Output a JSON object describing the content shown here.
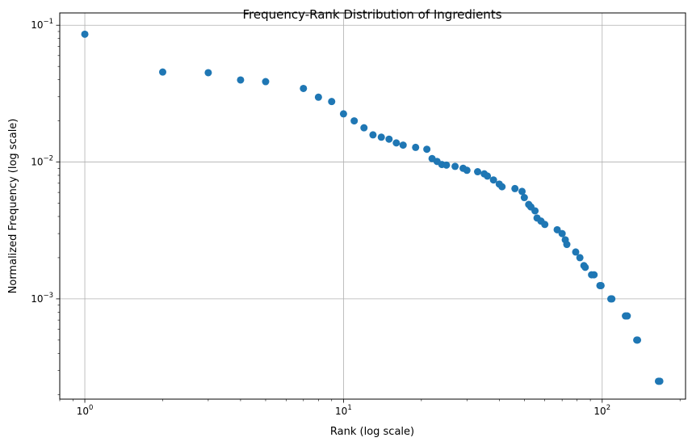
{
  "chart_data": {
    "type": "scatter",
    "title": "Frequency-Rank Distribution of Ingredients",
    "xlabel": "Rank (log scale)",
    "ylabel": "Normalized Frequency (log scale)",
    "xscale": "log",
    "yscale": "log",
    "xlim": [
      0.8,
      210
    ],
    "ylim": [
      0.000185,
      0.123
    ],
    "grid": true,
    "marker_color": "#1f77b4",
    "x_ticks": [
      {
        "value": 1,
        "base": "10",
        "exp": "0"
      },
      {
        "value": 10,
        "base": "10",
        "exp": "1"
      },
      {
        "value": 100,
        "base": "10",
        "exp": "2"
      }
    ],
    "y_ticks": [
      {
        "value": 0.001,
        "base": "10",
        "exp": "−3"
      },
      {
        "value": 0.01,
        "base": "10",
        "exp": "−2"
      },
      {
        "value": 0.1,
        "base": "10",
        "exp": "−1"
      }
    ],
    "points": [
      [
        1,
        0.086
      ],
      [
        2,
        0.0455
      ],
      [
        3,
        0.045
      ],
      [
        4,
        0.0398
      ],
      [
        5,
        0.0387
      ],
      [
        7,
        0.0345
      ],
      [
        8,
        0.0298
      ],
      [
        9,
        0.0277
      ],
      [
        10,
        0.0225
      ],
      [
        11,
        0.02
      ],
      [
        12,
        0.0178
      ],
      [
        13,
        0.0158
      ],
      [
        14,
        0.0152
      ],
      [
        15,
        0.0147
      ],
      [
        16,
        0.0138
      ],
      [
        17,
        0.0133
      ],
      [
        19,
        0.0128
      ],
      [
        21,
        0.0124
      ],
      [
        22,
        0.0106
      ],
      [
        23,
        0.0101
      ],
      [
        24,
        0.0096
      ],
      [
        25,
        0.0095
      ],
      [
        27,
        0.0093
      ],
      [
        29,
        0.009
      ],
      [
        30,
        0.0087
      ],
      [
        33,
        0.0085
      ],
      [
        35,
        0.0082
      ],
      [
        36,
        0.0079
      ],
      [
        38,
        0.0074
      ],
      [
        40,
        0.0069
      ],
      [
        41,
        0.0066
      ],
      [
        46,
        0.0064
      ],
      [
        49,
        0.0061
      ],
      [
        50,
        0.0055
      ],
      [
        52,
        0.0049
      ],
      [
        53,
        0.0047
      ],
      [
        55,
        0.0044
      ],
      [
        56,
        0.0039
      ],
      [
        58,
        0.0037
      ],
      [
        60,
        0.0035
      ],
      [
        67,
        0.0032
      ],
      [
        70,
        0.003
      ],
      [
        72,
        0.0027
      ],
      [
        73,
        0.0025
      ],
      [
        79,
        0.0022
      ],
      [
        82,
        0.002
      ],
      [
        85,
        0.00175
      ],
      [
        86,
        0.0017
      ],
      [
        91,
        0.0015
      ],
      [
        93,
        0.0015
      ],
      [
        98,
        0.00125
      ],
      [
        99,
        0.00125
      ],
      [
        108,
        0.001
      ],
      [
        109,
        0.001
      ],
      [
        123,
        0.00075
      ],
      [
        125,
        0.00075
      ],
      [
        136,
        0.0005
      ],
      [
        137,
        0.0005
      ],
      [
        165,
        0.00025
      ],
      [
        167,
        0.00025
      ]
    ]
  }
}
